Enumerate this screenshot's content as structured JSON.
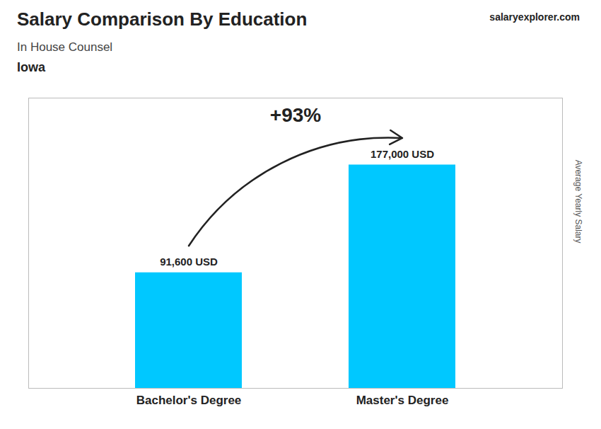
{
  "chart_data": {
    "type": "bar",
    "title": "Salary Comparison By Education",
    "subtitle": "In House Counsel",
    "location": "Iowa",
    "website": "salaryexplorer.com",
    "ylabel": "Average Yearly Salary",
    "categories": [
      "Bachelor's Degree",
      "Master's Degree"
    ],
    "values": [
      91600,
      177000
    ],
    "value_labels": [
      "91,600 USD",
      "177,000 USD"
    ],
    "data_labels": true,
    "color": "#00C8FF",
    "ylim": [
      0,
      230000
    ],
    "tick_labels": "x",
    "annotation": "+93%"
  }
}
